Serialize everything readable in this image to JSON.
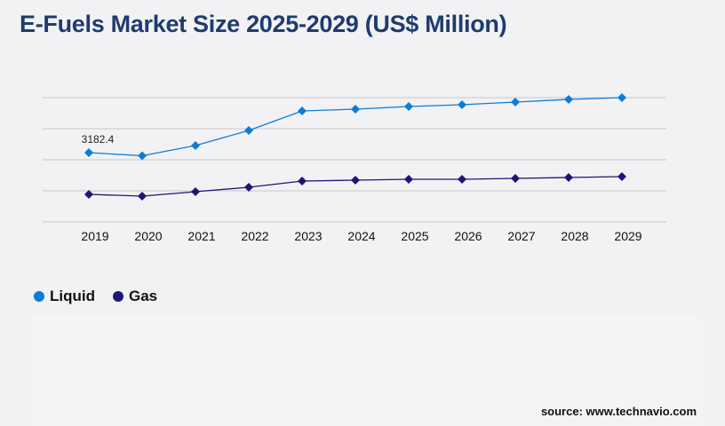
{
  "title": "E-Fuels Market Size 2025-2029 (US$ Million)",
  "source": "source: www.technavio.com",
  "colors": {
    "liquid": "#0b7dd8",
    "gas": "#1c1678",
    "grid": "#c8c8cc"
  },
  "chart_data": {
    "type": "line",
    "title": "E-Fuels Market Size 2025-2029 (US$ Million)",
    "x": [
      "2019",
      "2020",
      "2021",
      "2022",
      "2023",
      "2024",
      "2025",
      "2026",
      "2027",
      "2028",
      "2029"
    ],
    "ylim": [
      0,
      5712
    ],
    "grid": true,
    "legend_placement": "bottom-left",
    "marker": "diamond",
    "annotations": [
      {
        "series": "Liquid",
        "x": "2019",
        "text": "3182.4"
      }
    ],
    "series": [
      {
        "name": "Liquid",
        "color": "#0b7dd8",
        "values": [
          3182.4,
          3040,
          3509,
          4202,
          5100,
          5182,
          5304,
          5386,
          5508,
          5630,
          5712
        ]
      },
      {
        "name": "Gas",
        "color": "#1c1678",
        "values": [
          1265,
          1183,
          1387,
          1591,
          1877,
          1918,
          1958,
          1958,
          1999,
          2040,
          2081
        ]
      }
    ]
  }
}
